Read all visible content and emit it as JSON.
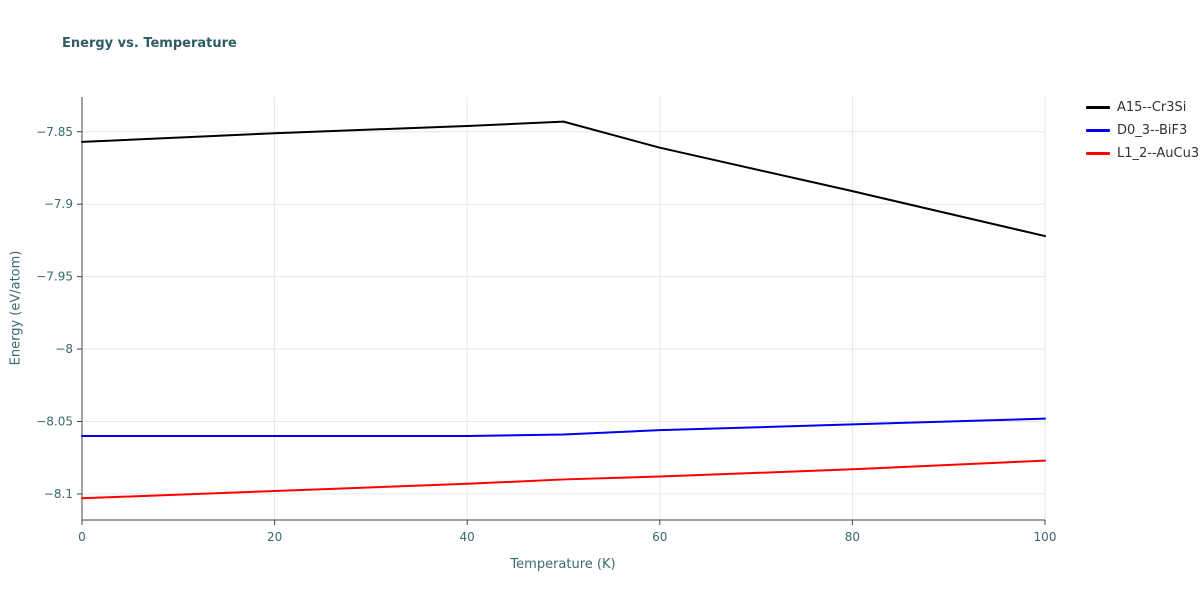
{
  "colors": {
    "background": "#ffffff",
    "title": "#2f5d66",
    "axis_label": "#3a6a6d",
    "tick_label": "#3a6a6d",
    "grid": "#e6e6e6",
    "axis": "#444444",
    "legend_text": "#333333"
  },
  "chart_data": {
    "type": "line",
    "title": "Energy vs. Temperature",
    "xlabel": "Temperature (K)",
    "ylabel": "Energy (eV/atom)",
    "xlim": [
      0,
      100
    ],
    "ylim": [
      -8.118,
      -7.826
    ],
    "xticks": [
      0,
      20,
      40,
      60,
      80,
      100
    ],
    "xtick_labels": [
      "0",
      "20",
      "40",
      "60",
      "80",
      "100"
    ],
    "yticks": [
      -7.85,
      -7.9,
      -7.95,
      -8.0,
      -8.05,
      -8.1
    ],
    "ytick_labels": [
      "−7.85",
      "−7.9",
      "−7.95",
      "−8",
      "−8.05",
      "−8.1"
    ],
    "grid": true,
    "legend_position": "top-right-outside",
    "x": [
      0,
      20,
      40,
      50,
      60,
      80,
      100
    ],
    "series": [
      {
        "name": "A15--Cr3Si",
        "color": "#000000",
        "values": [
          -7.857,
          -7.851,
          -7.846,
          -7.843,
          -7.861,
          -7.891,
          -7.922
        ]
      },
      {
        "name": "D0_3--BiF3",
        "color": "#0000ee",
        "values": [
          -8.06,
          -8.06,
          -8.06,
          -8.059,
          -8.056,
          -8.052,
          -8.048
        ]
      },
      {
        "name": "L1_2--AuCu3",
        "color": "#ff0000",
        "values": [
          -8.103,
          -8.098,
          -8.093,
          -8.09,
          -8.088,
          -8.083,
          -8.077
        ]
      }
    ]
  }
}
